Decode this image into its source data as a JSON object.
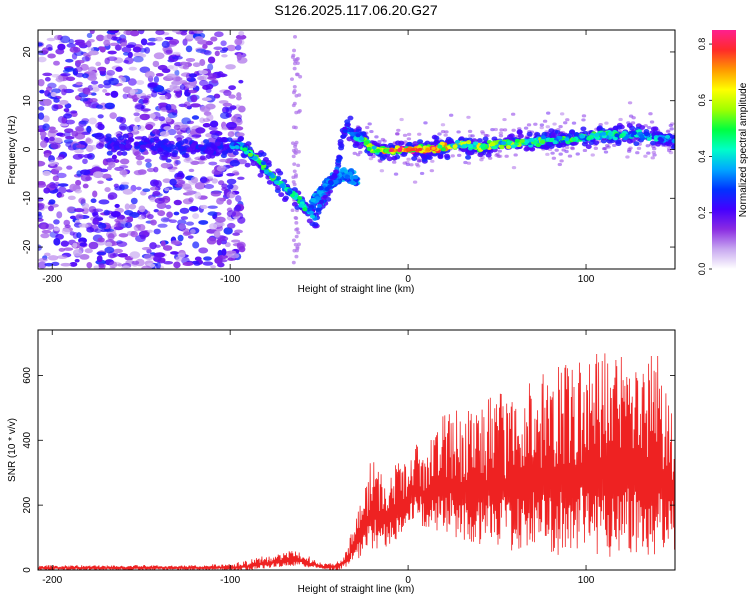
{
  "title": "S126.2025.117.06.20.G27",
  "chart_data": [
    {
      "type": "heatmap",
      "xlabel": "Height of straight line (km)",
      "ylabel": "Frequency (Hz)",
      "xlim": [
        -208,
        150
      ],
      "ylim": [
        -24.5,
        24.5
      ],
      "x_ticks": [
        -200,
        -100,
        0,
        100
      ],
      "y_ticks": [
        -20,
        -10,
        0,
        10,
        20
      ],
      "colorbar": {
        "label": "Normalized spectral amplitude",
        "range": [
          0.0,
          0.85
        ],
        "ticks": [
          0.0,
          0.2,
          0.4,
          0.6,
          0.8
        ],
        "colors": [
          "#ffffff",
          "#c8a8f0",
          "#8a2be2",
          "#4400ff",
          "#0033ff",
          "#00a8ff",
          "#00ffc8",
          "#00ff40",
          "#a0ff00",
          "#ffff00",
          "#ff9900",
          "#ff2a2a",
          "#ff1f8f"
        ]
      },
      "ridge": {
        "x": [
          -165,
          -155,
          -140,
          -120,
          -105,
          -95,
          -90,
          -85,
          -80,
          -75,
          -70,
          -65,
          -60,
          -55,
          -52,
          -50,
          -45,
          -40,
          -37,
          -35,
          -33,
          -30,
          -25,
          -20,
          -10,
          0,
          10,
          20,
          30,
          40,
          50,
          60,
          70,
          80,
          90,
          100,
          110,
          120,
          130,
          140,
          148
        ],
        "y": [
          1,
          1,
          0.5,
          0,
          0.5,
          1,
          -0.5,
          -2,
          -4,
          -6,
          -7.5,
          -9,
          -11,
          -13,
          -14,
          -12,
          -8,
          -4,
          2,
          4.5,
          4,
          3,
          2,
          0,
          -0.3,
          0,
          0,
          0.5,
          1,
          0.5,
          1,
          1.5,
          1.5,
          2,
          2,
          2.5,
          3,
          3,
          3,
          2.5,
          2
        ],
        "amplitude": [
          0.3,
          0.3,
          0.25,
          0.25,
          0.3,
          0.4,
          0.5,
          0.55,
          0.5,
          0.5,
          0.5,
          0.5,
          0.45,
          0.45,
          0.4,
          0.35,
          0.3,
          0.3,
          0.3,
          0.35,
          0.35,
          0.4,
          0.5,
          0.6,
          0.7,
          0.8,
          0.85,
          0.7,
          0.6,
          0.65,
          0.6,
          0.55,
          0.55,
          0.5,
          0.5,
          0.5,
          0.5,
          0.45,
          0.45,
          0.4,
          0.4
        ]
      },
      "side_branch": {
        "x": [
          -55,
          -50,
          -45,
          -40,
          -35,
          -30,
          -28
        ],
        "y": [
          -12,
          -9,
          -7,
          -6,
          -5,
          -6,
          -7
        ]
      }
    },
    {
      "type": "line",
      "xlabel": "Height of straight line (km)",
      "ylabel": "SNR (10 * v/v)",
      "xlim": [
        -208,
        150
      ],
      "ylim": [
        0,
        740
      ],
      "x_ticks": [
        -200,
        -100,
        0,
        100
      ],
      "y_ticks": [
        0,
        200,
        400,
        600
      ],
      "series": [
        {
          "color": "#ee2222",
          "x": [
            -208,
            -200,
            -180,
            -160,
            -140,
            -120,
            -100,
            -90,
            -80,
            -70,
            -65,
            -60,
            -55,
            -50,
            -45,
            -40,
            -35,
            -30,
            -25,
            -20,
            -15,
            -10,
            -5,
            0,
            5,
            10,
            20,
            30,
            40,
            50,
            60,
            70,
            80,
            90,
            100,
            110,
            120,
            130,
            140,
            150
          ],
          "y": [
            15,
            15,
            15,
            15,
            15,
            15,
            20,
            30,
            45,
            55,
            60,
            55,
            40,
            25,
            20,
            30,
            60,
            150,
            250,
            370,
            300,
            300,
            350,
            320,
            400,
            380,
            480,
            500,
            520,
            540,
            560,
            600,
            620,
            640,
            660,
            680,
            700,
            690,
            680,
            520
          ],
          "lower": [
            0,
            0,
            0,
            0,
            0,
            0,
            0,
            0,
            5,
            10,
            10,
            10,
            5,
            5,
            0,
            0,
            5,
            30,
            40,
            60,
            60,
            80,
            100,
            130,
            150,
            120,
            120,
            80,
            80,
            60,
            60,
            50,
            50,
            40,
            40,
            40,
            40,
            40,
            40,
            60
          ]
        }
      ]
    }
  ]
}
